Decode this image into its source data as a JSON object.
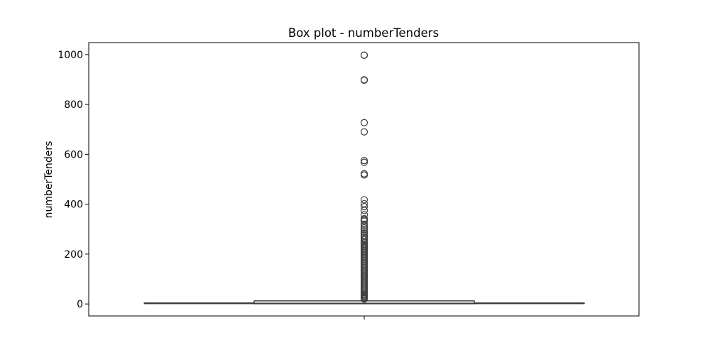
{
  "chart_data": {
    "type": "box",
    "title": "Box plot - numberTenders",
    "xlabel": "",
    "ylabel": "numberTenders",
    "ylim": [
      -48,
      1048
    ],
    "yticks": [
      0,
      200,
      400,
      600,
      800,
      1000
    ],
    "ytick_labels": [
      "0",
      "200",
      "400",
      "600",
      "800",
      "1000"
    ],
    "xticks": [
      ""
    ],
    "grid": false,
    "legend": "none",
    "colors": {
      "box_edge": "#3f3f3f",
      "box_fill": "#ffffff",
      "outlier_edge": "#3f3f3f",
      "axes": "#000000"
    },
    "box": {
      "whisker_low": 1,
      "q1": 1,
      "median": 3,
      "q3": 8,
      "whisker_high": 19
    },
    "outliers": [
      998,
      997,
      899,
      897,
      727,
      690,
      575,
      568,
      522,
      517,
      418,
      402,
      390,
      375,
      358,
      342,
      338,
      332,
      320,
      312,
      305,
      298,
      290,
      283,
      276,
      270,
      263,
      257,
      251,
      245,
      240,
      235,
      230,
      225,
      220,
      215,
      210,
      205,
      200,
      195,
      190,
      185,
      180,
      175,
      170,
      165,
      160,
      155,
      150,
      145,
      140,
      135,
      130,
      125,
      120,
      115,
      110,
      105,
      100,
      95,
      90,
      85,
      80,
      75,
      70,
      65,
      60,
      55,
      50,
      45,
      40,
      36,
      32,
      28,
      25,
      22,
      20
    ]
  }
}
